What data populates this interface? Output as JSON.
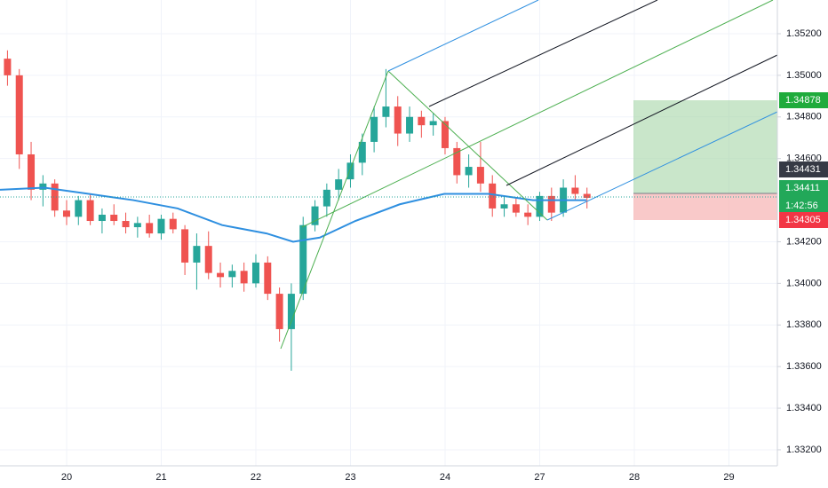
{
  "chart_data": {
    "type": "candlestick",
    "up_color": "#26a69a",
    "down_color": "#ef5350",
    "grid": true,
    "xlim": [
      -0.704,
      7.512
    ],
    "ylim": [
      1.33123,
      1.35362
    ],
    "xticks": [
      {
        "value": 0,
        "label": "20"
      },
      {
        "value": 1,
        "label": "21"
      },
      {
        "value": 2,
        "label": "22"
      },
      {
        "value": 3,
        "label": "23"
      },
      {
        "value": 4,
        "label": "24"
      },
      {
        "value": 5,
        "label": "27"
      },
      {
        "value": 6,
        "label": "28"
      },
      {
        "value": 7,
        "label": "29"
      }
    ],
    "yticks": [
      {
        "value": 1.352,
        "label": "1.35200"
      },
      {
        "value": 1.35,
        "label": "1.35000"
      },
      {
        "value": 1.348,
        "label": "1.34800"
      },
      {
        "value": 1.346,
        "label": "1.34600"
      },
      {
        "value": 1.342,
        "label": "1.34200"
      },
      {
        "value": 1.34,
        "label": "1.34000"
      },
      {
        "value": 1.338,
        "label": "1.33800"
      },
      {
        "value": 1.336,
        "label": "1.33600"
      },
      {
        "value": 1.334,
        "label": "1.33400"
      },
      {
        "value": 1.332,
        "label": "1.33200"
      }
    ],
    "x": [
      -0.625,
      -0.5,
      -0.375,
      -0.25,
      -0.125,
      0,
      0.125,
      0.25,
      0.375,
      0.5,
      0.625,
      0.75,
      0.875,
      1,
      1.125,
      1.25,
      1.375,
      1.5,
      1.625,
      1.75,
      1.875,
      2,
      2.125,
      2.25,
      2.375,
      2.5,
      2.625,
      2.75,
      2.875,
      3,
      3.125,
      3.25,
      3.375,
      3.5,
      3.625,
      3.75,
      3.875,
      4,
      4.125,
      4.25,
      4.375,
      4.5,
      4.625,
      4.75,
      4.875,
      5,
      5.125,
      5.25,
      5.375,
      5.5
    ],
    "open": [
      1.3508,
      1.35,
      1.3462,
      1.3445,
      1.3448,
      1.3435,
      1.3432,
      1.344,
      1.343,
      1.3433,
      1.343,
      1.3427,
      1.3429,
      1.3424,
      1.3431,
      1.3426,
      1.341,
      1.3418,
      1.3405,
      1.3403,
      1.3406,
      1.34,
      1.341,
      1.3395,
      1.3378,
      1.3395,
      1.3428,
      1.3437,
      1.3445,
      1.345,
      1.3458,
      1.3468,
      1.348,
      1.3485,
      1.3472,
      1.348,
      1.3476,
      1.3478,
      1.3465,
      1.3452,
      1.3456,
      1.3448,
      1.3436,
      1.3438,
      1.3434,
      1.3432,
      1.3442,
      1.3434,
      1.3446,
      1.3443
    ],
    "high": [
      1.3512,
      1.3503,
      1.3468,
      1.3452,
      1.345,
      1.344,
      1.3442,
      1.3443,
      1.3436,
      1.3438,
      1.3434,
      1.3432,
      1.3433,
      1.3433,
      1.3434,
      1.3428,
      1.3424,
      1.3425,
      1.341,
      1.3409,
      1.341,
      1.3414,
      1.3413,
      1.3398,
      1.34,
      1.3432,
      1.344,
      1.3448,
      1.3455,
      1.3462,
      1.3472,
      1.3485,
      1.3503,
      1.349,
      1.3485,
      1.3483,
      1.3482,
      1.348,
      1.3468,
      1.3462,
      1.3468,
      1.3452,
      1.3442,
      1.3441,
      1.3438,
      1.3444,
      1.3446,
      1.345,
      1.3452,
      1.3446
    ],
    "low": [
      1.3495,
      1.3455,
      1.344,
      1.3437,
      1.3432,
      1.3428,
      1.3428,
      1.3428,
      1.3424,
      1.3428,
      1.3424,
      1.3422,
      1.3422,
      1.3421,
      1.3424,
      1.3404,
      1.3397,
      1.3402,
      1.3398,
      1.3398,
      1.3396,
      1.3398,
      1.3392,
      1.3372,
      1.3358,
      1.3392,
      1.3425,
      1.3432,
      1.344,
      1.3446,
      1.3452,
      1.3463,
      1.3475,
      1.3466,
      1.3468,
      1.347,
      1.3471,
      1.3462,
      1.3448,
      1.3446,
      1.3444,
      1.3432,
      1.3432,
      1.3432,
      1.3428,
      1.343,
      1.343,
      1.3432,
      1.344,
      1.3436
    ],
    "close": [
      1.35,
      1.3462,
      1.3445,
      1.3448,
      1.3435,
      1.3432,
      1.344,
      1.343,
      1.3433,
      1.343,
      1.3427,
      1.3429,
      1.3424,
      1.3431,
      1.3426,
      1.341,
      1.3418,
      1.3405,
      1.3403,
      1.3406,
      1.34,
      1.341,
      1.3395,
      1.3378,
      1.3395,
      1.3428,
      1.3437,
      1.3445,
      1.345,
      1.3458,
      1.3468,
      1.348,
      1.3485,
      1.3472,
      1.348,
      1.3476,
      1.3478,
      1.3465,
      1.3452,
      1.3456,
      1.3448,
      1.3436,
      1.3438,
      1.3434,
      1.3432,
      1.3442,
      1.3434,
      1.3446,
      1.3443,
      1.34411
    ],
    "moving_average": {
      "color": "#2e8fe0",
      "x": [
        -0.704,
        -0.235,
        0.235,
        0.704,
        1.174,
        1.643,
        2.113,
        2.394,
        2.676,
        3.052,
        3.521,
        3.991,
        4.46,
        4.93,
        5.493
      ],
      "values": [
        1.3445,
        1.3446,
        1.3443,
        1.344,
        1.3436,
        1.3428,
        1.3424,
        1.342,
        1.3422,
        1.343,
        1.3438,
        1.3443,
        1.3443,
        1.344,
        1.344
      ]
    },
    "price_labels": [
      "1.34878",
      "1.34431",
      "1.34411",
      "1:42:56",
      "1.34305"
    ]
  }
}
